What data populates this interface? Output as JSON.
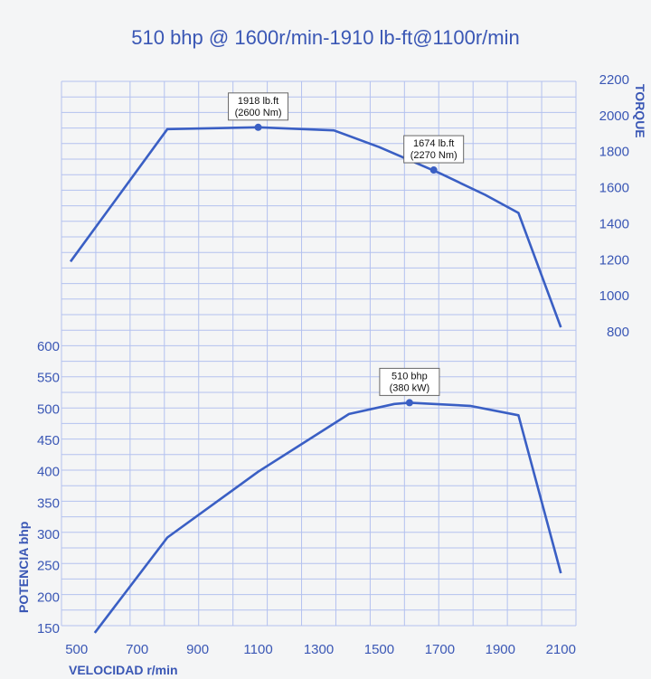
{
  "chart_data": {
    "type": "line",
    "title": "510 bhp @ 1600r/min-1910 lb-ft@1100r/min",
    "xlabel": "VELOCIDAD r/min",
    "x_ticks": [
      "500",
      "700",
      "900",
      "1100",
      "1300",
      "1500",
      "1700",
      "1900",
      "2100"
    ],
    "xlim": [
      450,
      2150
    ],
    "grid": true,
    "torque": {
      "axis_label": "TORQUE",
      "axis_side": "right",
      "ylim": [
        800,
        2200
      ],
      "y_ticks": [
        "2200",
        "2000",
        "1800",
        "1600",
        "1400",
        "1200",
        "1000",
        "800"
      ],
      "x": [
        480,
        800,
        1100,
        1350,
        1500,
        1700,
        1850,
        1960,
        2100
      ],
      "y": [
        1190,
        1925,
        1935,
        1918,
        1825,
        1680,
        1560,
        1460,
        825
      ]
    },
    "power": {
      "axis_label": "POTENCIA bhp",
      "axis_side": "left",
      "ylim": [
        150,
        600
      ],
      "y_ticks": [
        "600",
        "550",
        "500",
        "450",
        "400",
        "350",
        "300",
        "250",
        "200",
        "150"
      ],
      "x": [
        560,
        800,
        1100,
        1400,
        1550,
        1600,
        1800,
        1960,
        2100
      ],
      "y": [
        143,
        295,
        400,
        492,
        508,
        510,
        505,
        490,
        238
      ]
    },
    "annotations": [
      {
        "series": "torque",
        "x": 1100,
        "y": 1935,
        "lines": [
          "1918 lb.ft",
          "(2600 Nm)"
        ]
      },
      {
        "series": "torque",
        "x": 1680,
        "y": 1698,
        "lines": [
          "1674 lb.ft",
          "(2270 Nm)"
        ]
      },
      {
        "series": "power",
        "x": 1600,
        "y": 510,
        "lines": [
          "510 bhp",
          "(380 kW)"
        ]
      }
    ],
    "colors": {
      "line": "#3a5fc4",
      "grid": "#b3c1ef",
      "text": "#3a57b5",
      "background": "#f4f5f6"
    }
  }
}
